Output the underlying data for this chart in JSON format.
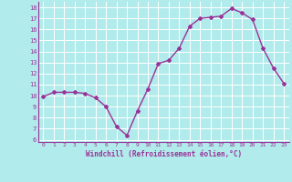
{
  "x": [
    0,
    1,
    2,
    3,
    4,
    5,
    6,
    7,
    8,
    9,
    10,
    11,
    12,
    13,
    14,
    15,
    16,
    17,
    18,
    19,
    20,
    21,
    22,
    23
  ],
  "y": [
    9.9,
    10.3,
    10.3,
    10.3,
    10.2,
    9.8,
    9.0,
    7.2,
    6.4,
    8.6,
    10.6,
    12.9,
    13.2,
    14.3,
    16.3,
    17.0,
    17.1,
    17.2,
    17.9,
    17.5,
    16.9,
    14.3,
    12.5,
    11.1
  ],
  "line_color": "#993399",
  "marker": "D",
  "marker_size": 2,
  "line_width": 1.0,
  "bg_color": "#b2ebeb",
  "grid_color": "#ffffff",
  "xlabel": "Windchill (Refroidissement éolien,°C)",
  "xlabel_color": "#993399",
  "tick_color": "#993399",
  "ylabel_ticks": [
    6,
    7,
    8,
    9,
    10,
    11,
    12,
    13,
    14,
    15,
    16,
    17,
    18
  ],
  "xlim": [
    -0.5,
    23.5
  ],
  "ylim": [
    5.8,
    18.5
  ]
}
